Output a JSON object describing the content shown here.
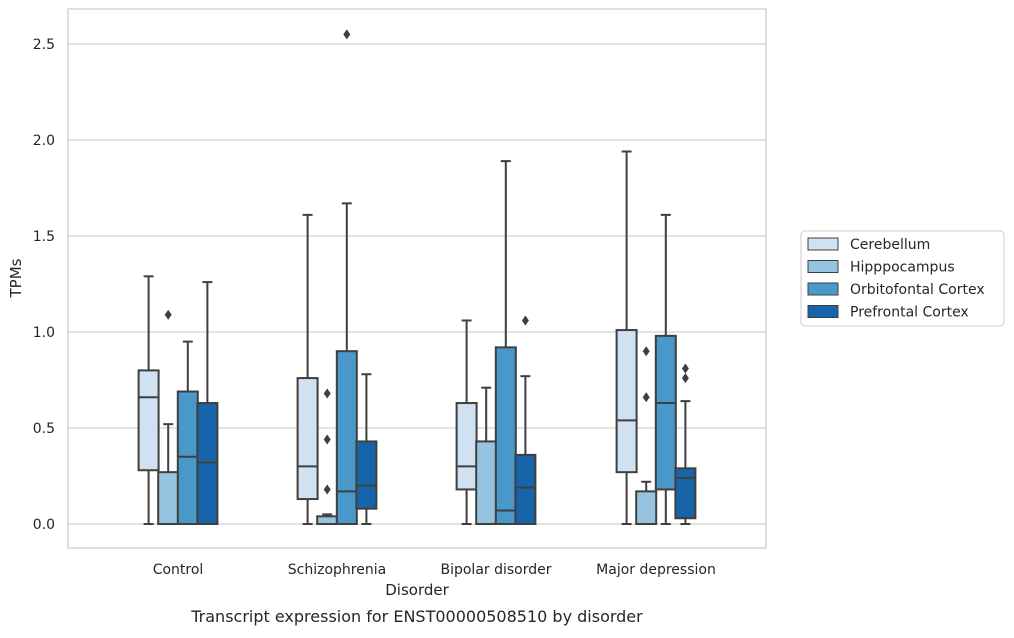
{
  "chart_data": {
    "type": "box",
    "xlabel": "Disorder",
    "ylabel": "TPMs",
    "caption": "Transcript expression for ENST00000508510 by disorder",
    "ylim": [
      -0.12,
      2.68
    ],
    "yticks": [
      "0.0",
      "0.5",
      "1.0",
      "1.5",
      "2.0",
      "2.5"
    ],
    "ytick_values": [
      0,
      0.5,
      1.0,
      1.5,
      2.0,
      2.5
    ],
    "grid": true,
    "legend_position": "right",
    "categories": [
      "Control",
      "Schizophrenia",
      "Bipolar disorder",
      "Major depression"
    ],
    "series": [
      {
        "name": "Cerebellum",
        "color": "#d0e1f2",
        "boxes": [
          {
            "whislo": 0.0,
            "q1": 0.28,
            "med": 0.66,
            "q3": 0.8,
            "whishi": 1.29,
            "fliers": []
          },
          {
            "whislo": 0.0,
            "q1": 0.13,
            "med": 0.3,
            "q3": 0.76,
            "whishi": 1.61,
            "fliers": []
          },
          {
            "whislo": 0.0,
            "q1": 0.18,
            "med": 0.3,
            "q3": 0.63,
            "whishi": 1.06,
            "fliers": []
          },
          {
            "whislo": 0.0,
            "q1": 0.27,
            "med": 0.54,
            "q3": 1.01,
            "whishi": 1.94,
            "fliers": []
          }
        ]
      },
      {
        "name": "Hipppocampus",
        "color": "#94c4df",
        "boxes": [
          {
            "whislo": 0.0,
            "q1": 0.0,
            "med": 0.0,
            "q3": 0.27,
            "whishi": 0.52,
            "fliers": [
              1.09
            ]
          },
          {
            "whislo": 0.0,
            "q1": 0.0,
            "med": 0.0,
            "q3": 0.04,
            "whishi": 0.05,
            "fliers": [
              0.18,
              0.44,
              0.68
            ]
          },
          {
            "whislo": 0.0,
            "q1": 0.0,
            "med": 0.0,
            "q3": 0.43,
            "whishi": 0.71,
            "fliers": []
          },
          {
            "whislo": 0.0,
            "q1": 0.0,
            "med": 0.0,
            "q3": 0.17,
            "whishi": 0.22,
            "fliers": [
              0.66,
              0.9
            ]
          }
        ]
      },
      {
        "name": "Orbitofontal Cortex",
        "color": "#4a98c9",
        "boxes": [
          {
            "whislo": 0.0,
            "q1": 0.0,
            "med": 0.35,
            "q3": 0.69,
            "whishi": 0.95,
            "fliers": []
          },
          {
            "whislo": 0.0,
            "q1": 0.0,
            "med": 0.17,
            "q3": 0.9,
            "whishi": 1.67,
            "fliers": [
              2.55
            ]
          },
          {
            "whislo": 0.0,
            "q1": 0.0,
            "med": 0.07,
            "q3": 0.92,
            "whishi": 1.89,
            "fliers": []
          },
          {
            "whislo": 0.0,
            "q1": 0.18,
            "med": 0.63,
            "q3": 0.98,
            "whishi": 1.61,
            "fliers": []
          }
        ]
      },
      {
        "name": "Prefrontal Cortex",
        "color": "#1764ab",
        "boxes": [
          {
            "whislo": 0.0,
            "q1": 0.0,
            "med": 0.32,
            "q3": 0.63,
            "whishi": 1.26,
            "fliers": []
          },
          {
            "whislo": 0.0,
            "q1": 0.08,
            "med": 0.2,
            "q3": 0.43,
            "whishi": 0.78,
            "fliers": []
          },
          {
            "whislo": 0.0,
            "q1": 0.0,
            "med": 0.19,
            "q3": 0.36,
            "whishi": 0.77,
            "fliers": [
              1.06
            ]
          },
          {
            "whislo": 0.0,
            "q1": 0.03,
            "med": 0.24,
            "q3": 0.29,
            "whishi": 0.64,
            "fliers": [
              0.76,
              0.81
            ]
          }
        ]
      }
    ]
  }
}
